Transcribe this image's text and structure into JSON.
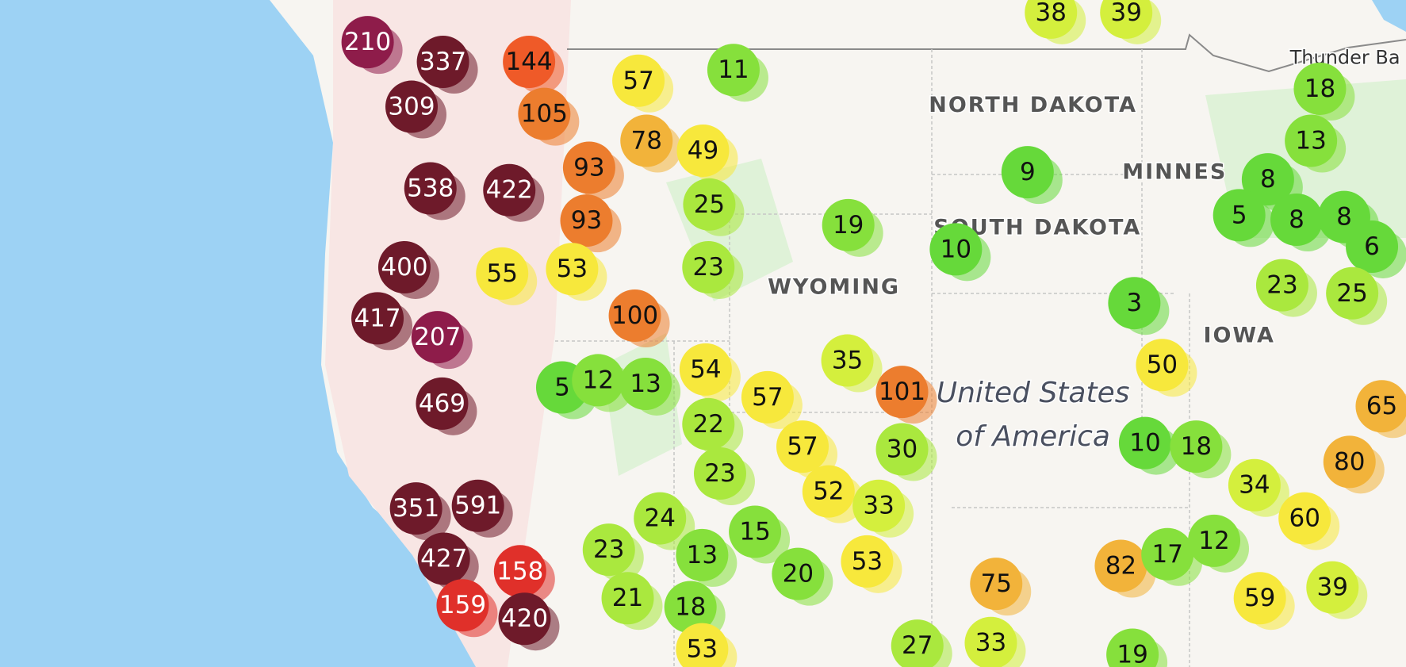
{
  "markers": [
    210,
    337,
    144,
    57,
    11,
    38,
    39,
    309,
    105,
    78,
    49,
    93,
    538,
    422,
    25,
    9,
    19,
    10,
    93,
    55,
    53,
    400,
    23,
    100,
    417,
    207,
    3,
    50,
    35,
    101,
    54,
    57,
    5,
    12,
    13,
    469,
    57,
    30,
    22,
    10,
    18,
    23,
    52,
    33,
    351,
    591,
    24,
    15,
    23,
    13,
    53,
    20,
    75,
    82,
    17,
    12,
    427,
    158,
    159,
    420,
    21,
    18,
    53,
    27,
    33,
    19,
    59,
    39,
    34,
    80,
    60,
    65,
    18,
    13,
    8,
    5,
    8,
    8,
    6,
    23,
    25
  ],
  "labels": [
    "NORTH DAKOTA",
    "MINNES",
    "SOUTH DAKOTA",
    "WYOMING",
    "IOWA"
  ],
  "country": [
    "United States",
    "of America"
  ],
  "cities": [
    "Thunder Ba"
  ]
}
